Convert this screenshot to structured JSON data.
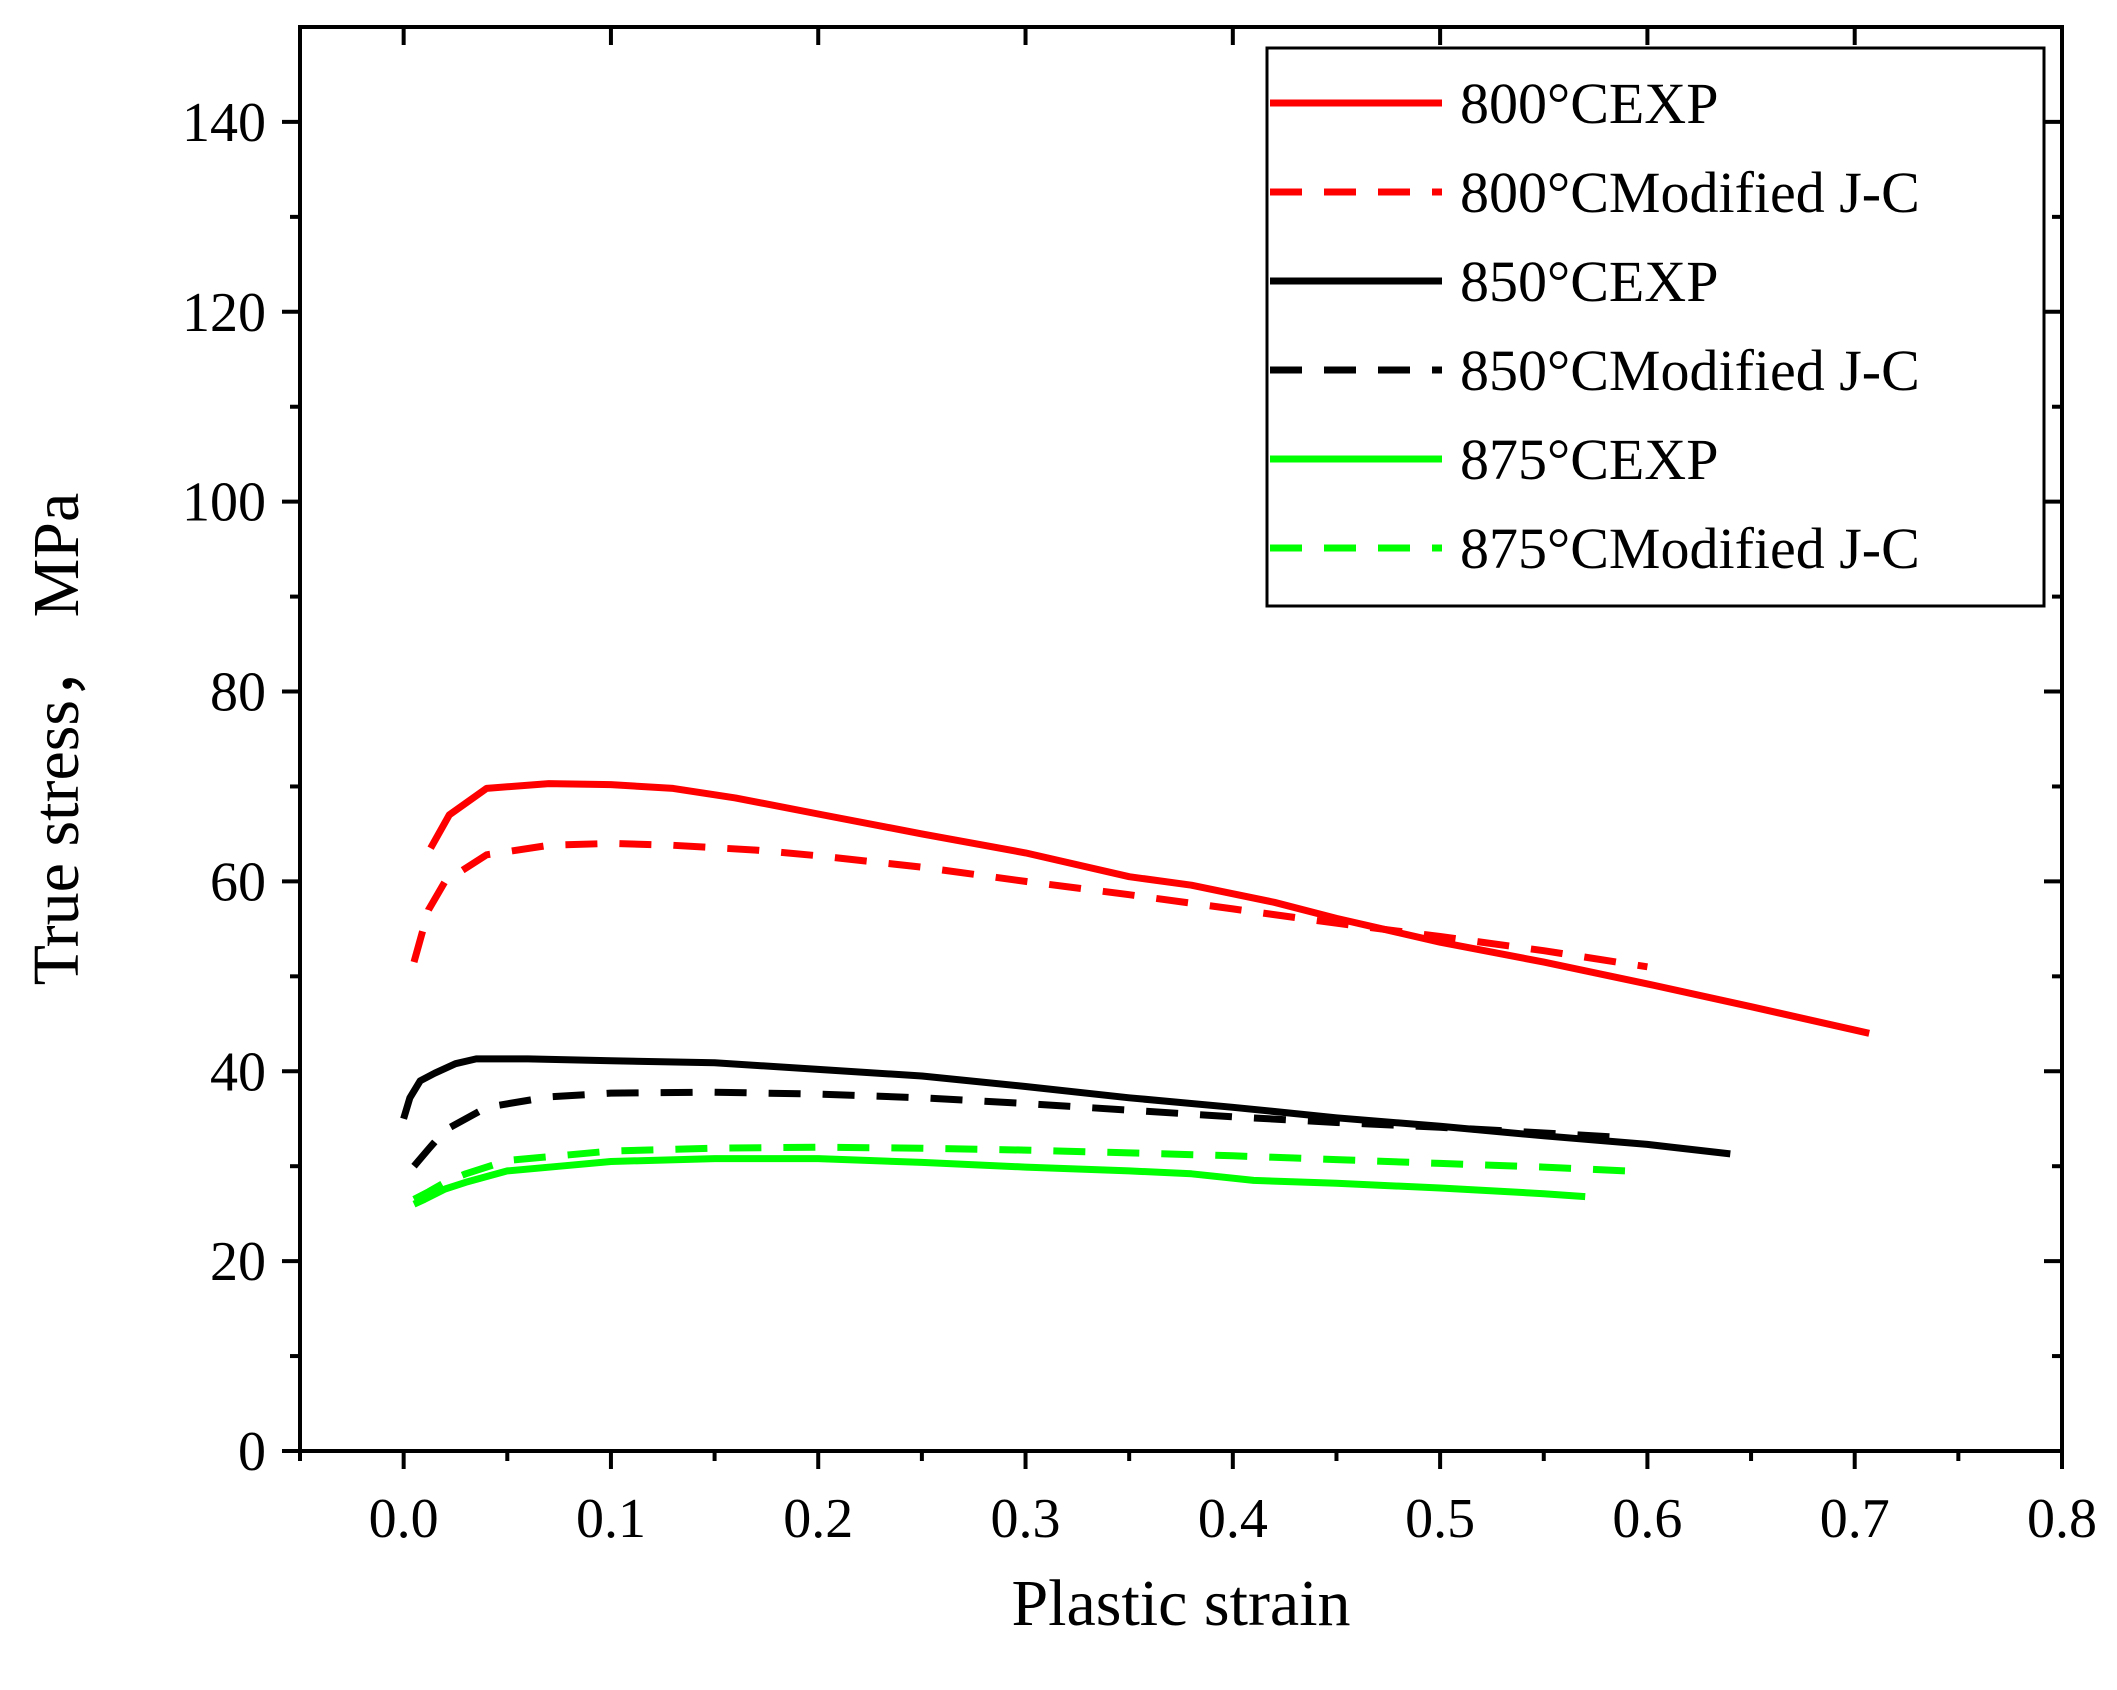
{
  "chart_data": {
    "type": "line",
    "title": "",
    "xlabel": "Plastic strain",
    "ylabel": "True stress，  MPa",
    "xlim": [
      -0.05,
      0.8
    ],
    "ylim": [
      0,
      150
    ],
    "xticks": [
      0.0,
      0.1,
      0.2,
      0.3,
      0.4,
      0.5,
      0.6,
      0.7,
      0.8
    ],
    "xtick_labels": [
      "0.0",
      "0.1",
      "0.2",
      "0.3",
      "0.4",
      "0.5",
      "0.6",
      "0.7",
      "0.8"
    ],
    "yticks": [
      0,
      20,
      40,
      60,
      80,
      100,
      120,
      140
    ],
    "ytick_labels": [
      "0",
      "20",
      "40",
      "60",
      "80",
      "100",
      "120",
      "140"
    ],
    "grid": false,
    "legend_position": "top-right",
    "series": [
      {
        "name": "800°CEXP",
        "color": "#ff0000",
        "style": "solid",
        "x": [
          0.013,
          0.022,
          0.04,
          0.07,
          0.1,
          0.13,
          0.16,
          0.2,
          0.25,
          0.3,
          0.35,
          0.38,
          0.42,
          0.45,
          0.5,
          0.55,
          0.6,
          0.65,
          0.707
        ],
        "y": [
          63.5,
          67,
          69.8,
          70.3,
          70.2,
          69.8,
          68.8,
          67.1,
          65,
          63,
          60.5,
          59.6,
          57.8,
          56.1,
          53.6,
          51.5,
          49.2,
          46.8,
          44
        ]
      },
      {
        "name": "800°CModified J-C",
        "color": "#ff0000",
        "style": "dashed",
        "x": [
          0.005,
          0.012,
          0.02,
          0.04,
          0.07,
          0.1,
          0.13,
          0.17,
          0.2,
          0.25,
          0.3,
          0.35,
          0.4,
          0.45,
          0.5,
          0.55,
          0.6
        ],
        "y": [
          51.5,
          57,
          60,
          62.8,
          63.8,
          64,
          63.8,
          63.3,
          62.7,
          61.5,
          60,
          58.6,
          57.1,
          55.6,
          54.2,
          52.7,
          51
        ]
      },
      {
        "name": "850°CEXP",
        "color": "#000000",
        "style": "solid",
        "x": [
          0.0,
          0.003,
          0.008,
          0.015,
          0.025,
          0.035,
          0.06,
          0.1,
          0.15,
          0.2,
          0.25,
          0.3,
          0.35,
          0.4,
          0.45,
          0.5,
          0.55,
          0.6,
          0.64
        ],
        "y": [
          35,
          37.2,
          39,
          39.8,
          40.8,
          41.3,
          41.3,
          41.1,
          40.9,
          40.2,
          39.5,
          38.4,
          37.2,
          36.2,
          35.1,
          34.2,
          33.2,
          32.3,
          31.3
        ]
      },
      {
        "name": "850°CModified J-C",
        "color": "#000000",
        "style": "dashed",
        "x": [
          0.005,
          0.012,
          0.02,
          0.04,
          0.07,
          0.1,
          0.15,
          0.2,
          0.25,
          0.3,
          0.35,
          0.4,
          0.45,
          0.5,
          0.55,
          0.59
        ],
        "y": [
          30,
          31.8,
          33.8,
          36.2,
          37.3,
          37.7,
          37.8,
          37.6,
          37.2,
          36.6,
          35.9,
          35.2,
          34.6,
          34.1,
          33.5,
          33
        ]
      },
      {
        "name": "875°CEXP",
        "color": "#00ff00",
        "style": "solid",
        "x": [
          0.005,
          0.01,
          0.02,
          0.03,
          0.05,
          0.08,
          0.1,
          0.15,
          0.2,
          0.25,
          0.3,
          0.35,
          0.38,
          0.41,
          0.45,
          0.5,
          0.55,
          0.57
        ],
        "y": [
          26,
          26.5,
          27.6,
          28.3,
          29.5,
          30.1,
          30.5,
          30.8,
          30.8,
          30.4,
          29.9,
          29.5,
          29.2,
          28.5,
          28.2,
          27.7,
          27.1,
          26.8
        ]
      },
      {
        "name": "875°CModified J-C",
        "color": "#00ff00",
        "style": "dashed",
        "x": [
          0.005,
          0.012,
          0.02,
          0.03,
          0.05,
          0.08,
          0.1,
          0.15,
          0.2,
          0.25,
          0.3,
          0.35,
          0.4,
          0.45,
          0.5,
          0.55,
          0.59
        ],
        "y": [
          26.5,
          27.3,
          28.3,
          29.2,
          30.6,
          31.2,
          31.6,
          31.9,
          32,
          31.9,
          31.7,
          31.4,
          31.1,
          30.7,
          30.3,
          29.9,
          29.5
        ]
      }
    ]
  }
}
